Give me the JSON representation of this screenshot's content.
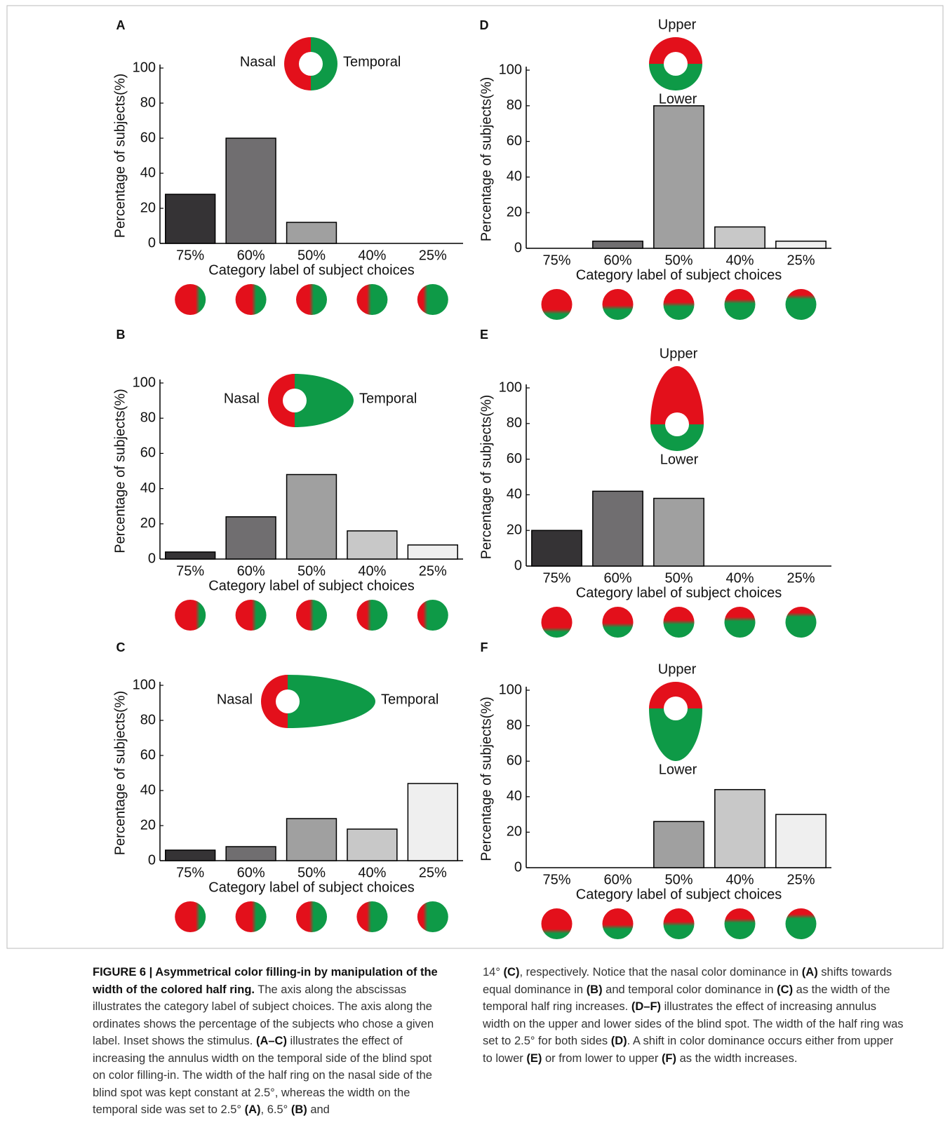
{
  "chart_data": [
    {
      "type": "bar",
      "panel": "A",
      "inset_labels": [
        "Nasal",
        "Temporal"
      ],
      "xlabel": "Category label of subject choices",
      "ylabel": "Percentage of subjects(%)",
      "categories": [
        "75%",
        "60%",
        "50%",
        "40%",
        "25%"
      ],
      "values": [
        28,
        60,
        12,
        0,
        0
      ],
      "colors": [
        "#353335",
        "#706e70",
        "#a0a0a0",
        "#c8c8c8",
        "#efefef"
      ],
      "ylim": [
        0,
        100
      ],
      "yticks": [
        0,
        20,
        40,
        60,
        80,
        100
      ]
    },
    {
      "type": "bar",
      "panel": "B",
      "inset_labels": [
        "Nasal",
        "Temporal"
      ],
      "xlabel": "Category label of subject choices",
      "ylabel": "Percentage of subjects(%)",
      "categories": [
        "75%",
        "60%",
        "50%",
        "40%",
        "25%"
      ],
      "values": [
        4,
        24,
        48,
        16,
        8
      ],
      "colors": [
        "#353335",
        "#706e70",
        "#a0a0a0",
        "#c8c8c8",
        "#efefef"
      ],
      "ylim": [
        0,
        100
      ],
      "yticks": [
        0,
        20,
        40,
        60,
        80,
        100
      ]
    },
    {
      "type": "bar",
      "panel": "C",
      "inset_labels": [
        "Nasal",
        "Temporal"
      ],
      "xlabel": "Category label of subject choices",
      "ylabel": "Percentage of subjects(%)",
      "categories": [
        "75%",
        "60%",
        "50%",
        "40%",
        "25%"
      ],
      "values": [
        6,
        8,
        24,
        18,
        44
      ],
      "colors": [
        "#353335",
        "#706e70",
        "#a0a0a0",
        "#c8c8c8",
        "#efefef"
      ],
      "ylim": [
        0,
        100
      ],
      "yticks": [
        0,
        20,
        40,
        60,
        80,
        100
      ]
    },
    {
      "type": "bar",
      "panel": "D",
      "inset_labels": [
        "Upper",
        "Lower"
      ],
      "xlabel": "Category label of subject choices",
      "ylabel": "Percentage of subjects(%)",
      "categories": [
        "75%",
        "60%",
        "50%",
        "40%",
        "25%"
      ],
      "values": [
        0,
        4,
        80,
        12,
        4
      ],
      "colors": [
        "#353335",
        "#706e70",
        "#a0a0a0",
        "#c8c8c8",
        "#efefef"
      ],
      "ylim": [
        0,
        100
      ],
      "yticks": [
        0,
        20,
        40,
        60,
        80,
        100
      ]
    },
    {
      "type": "bar",
      "panel": "E",
      "inset_labels": [
        "Upper",
        "Lower"
      ],
      "xlabel": "Category label of subject choices",
      "ylabel": "Percentage of subjects(%)",
      "categories": [
        "75%",
        "60%",
        "50%",
        "40%",
        "25%"
      ],
      "values": [
        20,
        42,
        38,
        0,
        0
      ],
      "colors": [
        "#353335",
        "#706e70",
        "#a0a0a0",
        "#c8c8c8",
        "#efefef"
      ],
      "ylim": [
        0,
        100
      ],
      "yticks": [
        0,
        20,
        40,
        60,
        80,
        100
      ]
    },
    {
      "type": "bar",
      "panel": "F",
      "inset_labels": [
        "Upper",
        "Lower"
      ],
      "xlabel": "Category label of subject choices",
      "ylabel": "Percentage of subjects(%)",
      "categories": [
        "75%",
        "60%",
        "50%",
        "40%",
        "25%"
      ],
      "values": [
        0,
        0,
        26,
        44,
        30
      ],
      "colors": [
        "#353335",
        "#706e70",
        "#a0a0a0",
        "#c8c8c8",
        "#efefef"
      ],
      "ylim": [
        0,
        100
      ],
      "yticks": [
        0,
        20,
        40,
        60,
        80,
        100
      ]
    }
  ],
  "caption": {
    "left": [
      {
        "text": "FIGURE 6 | Asymmetrical color filling-in by manipulation of the width of the colored half ring.",
        "bold": true
      },
      {
        "text": " The axis along the abscissas illustrates the category label of subject choices. The axis along the ordinates shows the percentage of the subjects who chose a given label. Inset shows the stimulus. "
      },
      {
        "text": "(A–C)",
        "bold": true
      },
      {
        "text": " illustrates the effect of increasing the annulus width on the temporal side of the blind spot on color filling-in. The width of the half ring on the nasal side of the blind spot was kept constant at 2.5°, whereas the width on the temporal side was set to 2.5° "
      },
      {
        "text": "(A)",
        "bold": true
      },
      {
        "text": ", 6.5° "
      },
      {
        "text": "(B)",
        "bold": true
      },
      {
        "text": " and"
      }
    ],
    "right": [
      {
        "text": "14° "
      },
      {
        "text": "(C)",
        "bold": true
      },
      {
        "text": ", respectively. Notice that the nasal color dominance in "
      },
      {
        "text": "(A)",
        "bold": true
      },
      {
        "text": " shifts towards equal dominance in "
      },
      {
        "text": "(B)",
        "bold": true
      },
      {
        "text": " and temporal color dominance in "
      },
      {
        "text": "(C)",
        "bold": true
      },
      {
        "text": " as the width of the temporal half ring increases. "
      },
      {
        "text": "(D–F)",
        "bold": true
      },
      {
        "text": " illustrates the effect of increasing annulus width on the upper and lower sides of the blind spot. The width of the half ring was set to 2.5° for both sides "
      },
      {
        "text": "(D)",
        "bold": true
      },
      {
        "text": ". A shift in color dominance occurs either from upper to lower "
      },
      {
        "text": "(E)",
        "bold": true
      },
      {
        "text": " or from lower to upper "
      },
      {
        "text": "(F)",
        "bold": true
      },
      {
        "text": " as the width increases."
      }
    ]
  }
}
